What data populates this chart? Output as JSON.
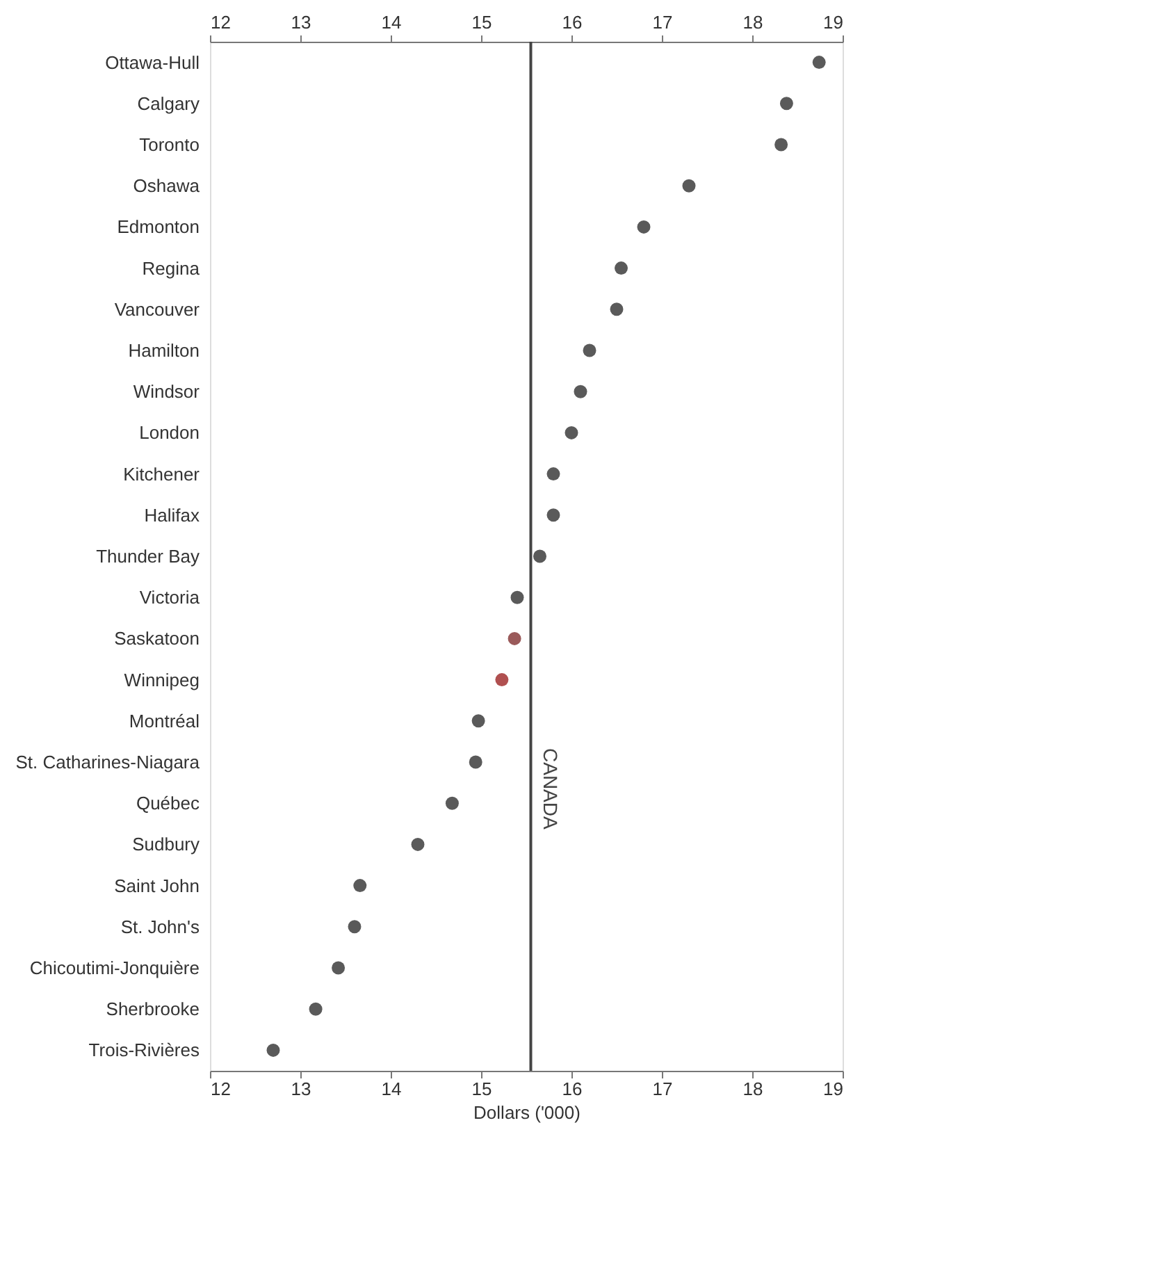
{
  "chart_data": {
    "type": "scatter",
    "xlabel": "Dollars ('000)",
    "categories": [
      "Ottawa-Hull",
      "Calgary",
      "Toronto",
      "Oshawa",
      "Edmonton",
      "Regina",
      "Vancouver",
      "Hamilton",
      "Windsor",
      "London",
      "Kitchener",
      "Halifax",
      "Thunder Bay",
      "Victoria",
      "Saskatoon",
      "Winnipeg",
      "Montréal",
      "St. Catharines-Niagara",
      "Québec",
      "Sudbury",
      "Saint John",
      "St. John's",
      "Chicoutimi-Jonquière",
      "Sherbrooke",
      "Trois-Rivières"
    ],
    "values": [
      18.74,
      18.38,
      18.32,
      17.3,
      16.8,
      16.55,
      16.5,
      16.2,
      16.1,
      16.0,
      15.8,
      15.8,
      15.65,
      15.4,
      15.37,
      15.23,
      14.97,
      14.94,
      14.68,
      14.3,
      13.66,
      13.6,
      13.42,
      13.17,
      12.7
    ],
    "colors": [
      "#5a5a5a",
      "#5a5a5a",
      "#5a5a5a",
      "#5a5a5a",
      "#5a5a5a",
      "#5a5a5a",
      "#5a5a5a",
      "#5a5a5a",
      "#5a5a5a",
      "#5a5a5a",
      "#5a5a5a",
      "#5a5a5a",
      "#5a5a5a",
      "#5a5a5a",
      "#9a5a5a",
      "#b05050",
      "#5a5a5a",
      "#5a5a5a",
      "#5a5a5a",
      "#5a5a5a",
      "#5a5a5a",
      "#5a5a5a",
      "#5a5a5a",
      "#5a5a5a",
      "#5a5a5a"
    ],
    "orientation": "horizontal",
    "marker": "circle",
    "xlim": [
      12,
      19
    ],
    "xticks": [
      12,
      13,
      14,
      15,
      16,
      17,
      18,
      19
    ],
    "x2lim": [
      12,
      19
    ],
    "x2ticks": [
      12,
      13,
      14,
      15,
      16,
      17,
      18,
      19
    ],
    "ref_lines": [
      {
        "axis": "x",
        "value": 15.55,
        "label": "CANADA",
        "color": "#444444"
      }
    ],
    "grid": false
  }
}
